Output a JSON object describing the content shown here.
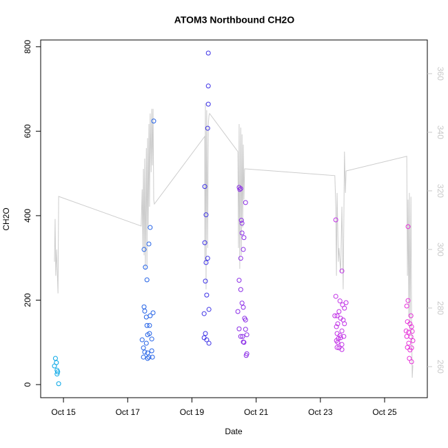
{
  "chart_data": {
    "type": "scatter",
    "title": "ATOM3 Northbound CH2O",
    "x_label": "Date",
    "y_label": "CH2O",
    "xlim": [
      14.29,
      26.33
    ],
    "ylim": [
      -31,
      816
    ],
    "y2lim": [
      249.4,
      371.5
    ],
    "xticks": [
      {
        "value": 15,
        "label": "Oct 15"
      },
      {
        "value": 17,
        "label": "Oct 17"
      },
      {
        "value": 19,
        "label": "Oct 19"
      },
      {
        "value": 21,
        "label": "Oct 21"
      },
      {
        "value": 23,
        "label": "Oct 23"
      },
      {
        "value": 25,
        "label": "Oct 25"
      }
    ],
    "yticks": [
      0,
      200,
      400,
      600,
      800
    ],
    "y2ticks": [
      260,
      280,
      300,
      320,
      340,
      360
    ],
    "y2_color": "#c8c8c8",
    "series": [
      {
        "type": "scatter",
        "color": "#00a5e6",
        "x": [
          14.75,
          14.78,
          14.72,
          14.8,
          14.82,
          14.8,
          14.85
        ],
        "values": [
          62,
          52,
          44,
          34,
          30,
          25,
          2
        ]
      },
      {
        "type": "scatter",
        "color": "#1f5fe6",
        "x": [
          17.81,
          17.7,
          17.66,
          17.51,
          17.55,
          17.6,
          17.51,
          17.53,
          17.58,
          17.7,
          17.79,
          17.6,
          17.68,
          17.62,
          17.68,
          17.45,
          17.75,
          17.58,
          17.49,
          17.53,
          17.62,
          17.75,
          17.49,
          17.66,
          17.77,
          17.62
        ],
        "values": [
          624,
          372,
          333,
          320,
          278,
          248,
          184,
          174,
          160,
          163,
          170,
          140,
          140,
          118,
          121,
          106,
          108,
          98,
          87,
          77,
          75,
          80,
          65,
          65,
          65,
          62
        ]
      },
      {
        "type": "scatter",
        "color": "#3a2fe6",
        "x": [
          19.51,
          19.51,
          19.51,
          19.49,
          19.4,
          19.44,
          19.4,
          19.49,
          19.44,
          19.42,
          19.46,
          19.53,
          19.38,
          19.42,
          19.38,
          19.46,
          19.53
        ],
        "values": [
          785,
          707,
          664,
          607,
          469,
          402,
          336,
          299,
          289,
          245,
          212,
          178,
          168,
          121,
          111,
          106,
          98
        ]
      },
      {
        "type": "scatter",
        "color": "#8a2be6",
        "x": [
          20.47,
          20.49,
          20.52,
          20.67,
          20.54,
          20.56,
          20.56,
          20.6,
          20.62,
          20.52,
          20.47,
          20.52,
          20.56,
          20.6,
          20.43,
          20.64,
          20.67,
          20.47,
          20.67,
          20.71,
          20.52,
          20.58,
          20.6,
          20.62,
          20.71,
          20.69
        ],
        "values": [
          467,
          462,
          464,
          431,
          389,
          382,
          359,
          320,
          348,
          299,
          247,
          225,
          193,
          183,
          173,
          157,
          153,
          132,
          131,
          118,
          114,
          114,
          101,
          100,
          73,
          69
        ]
      },
      {
        "type": "scatter",
        "color": "#c02ee6",
        "x": [
          23.48,
          23.67,
          23.48,
          23.61,
          23.69,
          23.8,
          23.75,
          23.58,
          23.45,
          23.52,
          23.63,
          23.71,
          23.54,
          23.5,
          23.75,
          23.67,
          23.52,
          23.61,
          23.73,
          23.56,
          23.5,
          23.63,
          23.54,
          23.67,
          23.58,
          23.67,
          23.52
        ],
        "values": [
          390,
          269,
          209,
          198,
          189,
          194,
          181,
          173,
          163,
          163,
          157,
          153,
          144,
          137,
          144,
          127,
          121,
          116,
          114,
          109,
          104,
          111,
          100,
          95,
          87,
          83,
          88
        ]
      },
      {
        "type": "scatter",
        "color": "#e62ed8",
        "x": [
          25.73,
          25.73,
          25.69,
          25.82,
          25.71,
          25.79,
          25.84,
          25.67,
          25.75,
          25.86,
          25.69,
          25.82,
          25.88,
          25.75,
          25.84,
          25.79,
          25.71,
          25.77,
          25.84
        ],
        "values": [
          374,
          199,
          186,
          163,
          149,
          144,
          137,
          127,
          124,
          126,
          114,
          113,
          104,
          98,
          87,
          82,
          88,
          62,
          54
        ]
      },
      {
        "type": "line",
        "axis": "y2",
        "color": "#cccccc",
        "x": [
          14.72,
          14.74,
          14.76,
          14.79,
          14.81,
          14.83,
          14.85,
          17.42,
          17.45,
          17.47,
          17.49,
          17.51,
          17.53,
          17.55,
          17.58,
          17.6,
          17.62,
          17.64,
          17.66,
          17.68,
          17.7,
          17.73,
          17.75,
          17.77,
          17.79,
          17.81,
          17.83,
          19.4,
          19.4,
          19.42,
          19.44,
          19.46,
          19.49,
          19.51,
          19.53,
          19.55,
          20.43,
          20.45,
          20.47,
          20.49,
          20.52,
          20.54,
          20.56,
          20.58,
          20.6,
          20.62,
          20.64,
          20.67,
          23.45,
          23.48,
          23.5,
          23.52,
          23.54,
          23.56,
          23.58,
          23.63,
          23.67,
          23.71,
          23.75,
          23.78,
          23.8,
          25.69,
          25.71,
          25.73,
          25.75,
          25.77,
          25.79,
          25.82,
          25.84,
          25.86,
          25.88
        ],
        "values": [
          295.8,
          310.4,
          291,
          300,
          291.5,
          285,
          318.1,
          308,
          320.5,
          300.5,
          327.5,
          298,
          331,
          293.4,
          334.6,
          294.6,
          338,
          307.5,
          342.8,
          314.6,
          346.4,
          326.4,
          348,
          328.7,
          348,
          317,
          315.5,
          338.6,
          295.8,
          349.9,
          286.4,
          347.5,
          300.5,
          342.8,
          345.6,
          346.4,
          333.4,
          300.5,
          342.8,
          293.4,
          341.6,
          298,
          339.3,
          307.5,
          335.8,
          317,
          327.5,
          327.5,
          325.2,
          314.6,
          291,
          319.3,
          307.5,
          295.8,
          300.5,
          292.2,
          314.6,
          286.4,
          333.4,
          319.3,
          326.8,
          331.8,
          291,
          317,
          277,
          319.3,
          272.2,
          318,
          274.6,
          256.2,
          260.5
        ]
      }
    ]
  }
}
